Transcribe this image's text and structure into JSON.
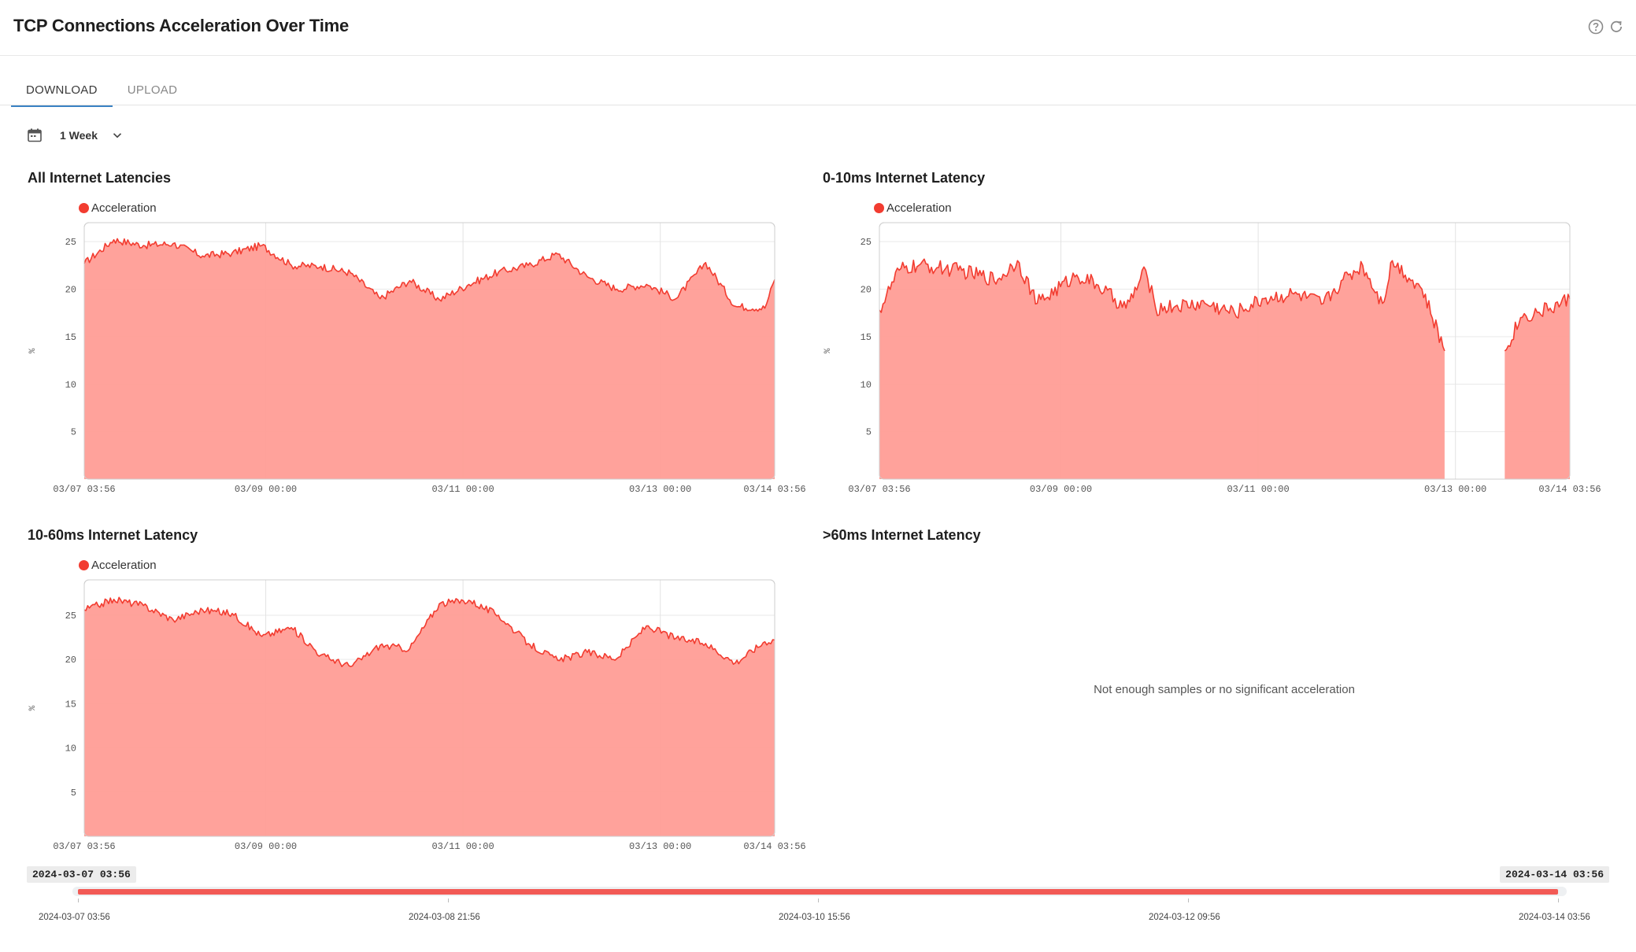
{
  "page": {
    "title": "TCP Connections Acceleration Over Time"
  },
  "header": {
    "icons": [
      "help-icon",
      "refresh-icon"
    ]
  },
  "tabs": [
    {
      "label": "DOWNLOAD",
      "active": true
    },
    {
      "label": "UPLOAD",
      "active": false
    }
  ],
  "range_select": {
    "icon": "calendar-icon",
    "value": "1 Week",
    "chevron": "chevron-down-icon"
  },
  "colors": {
    "series": "#f23c30",
    "fill": "#ff9d96",
    "accent": "#3b82c4"
  },
  "panels": [
    {
      "title": "All Internet Latencies",
      "legend": "Acceleration",
      "ylabel": "%"
    },
    {
      "title": "0-10ms Internet Latency",
      "legend": "Acceleration",
      "ylabel": "%"
    },
    {
      "title": "10-60ms Internet Latency",
      "legend": "Acceleration",
      "ylabel": "%"
    },
    {
      "title": ">60ms Internet Latency",
      "empty_message": "Not enough samples or no significant acceleration"
    }
  ],
  "chart_data": [
    {
      "type": "area",
      "title": "All Internet Latencies",
      "ylabel": "%",
      "ylim": [
        0,
        27
      ],
      "yticks": [
        5,
        10,
        15,
        20,
        25
      ],
      "xticks": [
        "03/07 03:56",
        "03/09 00:00",
        "03/11 00:00",
        "03/13 00:00",
        "03/14 03:56"
      ],
      "grid": true,
      "legend": "top-left",
      "series": [
        {
          "name": "Acceleration",
          "x": [
            0,
            0.3,
            0.6,
            0.9,
            1.2,
            1.5,
            1.8,
            2.1,
            2.4,
            2.7,
            3.0,
            3.3,
            3.6,
            3.9,
            4.2,
            4.5,
            4.8,
            5.1,
            5.4,
            5.7,
            6.0,
            6.3,
            6.6,
            6.9,
            7.0
          ],
          "y": [
            22.7,
            25.2,
            24.6,
            24.8,
            23.5,
            23.8,
            24.6,
            22.5,
            22.4,
            21.7,
            19.0,
            20.9,
            18.9,
            20.5,
            21.8,
            22.5,
            23.7,
            21.3,
            20.0,
            20.5,
            19.0,
            22.8,
            18.2,
            18.0,
            21.0
          ]
        }
      ]
    },
    {
      "type": "area",
      "title": "0-10ms Internet Latency",
      "ylabel": "%",
      "ylim": [
        0,
        27
      ],
      "yticks": [
        5,
        10,
        15,
        20,
        25
      ],
      "xticks": [
        "03/07 03:56",
        "03/09 00:00",
        "03/11 00:00",
        "03/13 00:00",
        "03/14 03:56"
      ],
      "grid": true,
      "legend": "top-left",
      "series": [
        {
          "name": "Acceleration",
          "x": [
            0,
            0.2,
            0.4,
            0.8,
            1.2,
            1.4,
            1.6,
            2.0,
            2.2,
            2.5,
            2.7,
            2.8,
            3.0,
            3.3,
            3.6,
            3.9,
            4.2,
            4.5,
            4.7,
            4.9,
            5.1,
            5.2,
            5.5,
            5.73,
            5.8,
            6.34,
            6.5,
            6.8,
            7.0
          ],
          "y": [
            17.8,
            22.0,
            22.5,
            22.0,
            21.0,
            23.0,
            18.5,
            21.5,
            20.5,
            18.0,
            22.0,
            18.0,
            18.2,
            18.5,
            17.5,
            19.0,
            19.5,
            18.5,
            21.0,
            22.5,
            18.5,
            23.0,
            20.0,
            13.5,
            null,
            13.5,
            17.0,
            18.0,
            19.0
          ]
        }
      ]
    },
    {
      "type": "area",
      "title": "10-60ms Internet Latency",
      "ylabel": "%",
      "ylim": [
        0,
        29
      ],
      "yticks": [
        5,
        10,
        15,
        20,
        25
      ],
      "xticks": [
        "03/07 03:56",
        "03/09 00:00",
        "03/11 00:00",
        "03/13 00:00",
        "03/14 03:56"
      ],
      "grid": true,
      "legend": "top-left",
      "series": [
        {
          "name": "Acceleration",
          "x": [
            0,
            0.3,
            0.6,
            0.9,
            1.2,
            1.5,
            1.8,
            2.1,
            2.4,
            2.7,
            3.0,
            3.3,
            3.6,
            3.9,
            4.2,
            4.5,
            4.8,
            5.1,
            5.4,
            5.7,
            6.0,
            6.3,
            6.6,
            6.9,
            7.0
          ],
          "y": [
            25.6,
            26.8,
            26.1,
            24.5,
            25.6,
            25.2,
            22.6,
            23.6,
            20.5,
            19.2,
            21.6,
            21.2,
            26.3,
            26.7,
            25.0,
            21.8,
            19.9,
            20.8,
            20.1,
            23.8,
            22.4,
            21.8,
            19.6,
            22.0,
            22.2
          ]
        }
      ]
    }
  ],
  "timeline": {
    "start_badge": "2024-03-07 03:56",
    "end_badge": "2024-03-14 03:56",
    "selected_fraction": [
      0,
      1
    ],
    "ticks": [
      "2024-03-07 03:56",
      "2024-03-08 21:56",
      "2024-03-10 15:56",
      "2024-03-12 09:56",
      "2024-03-14 03:56"
    ]
  }
}
